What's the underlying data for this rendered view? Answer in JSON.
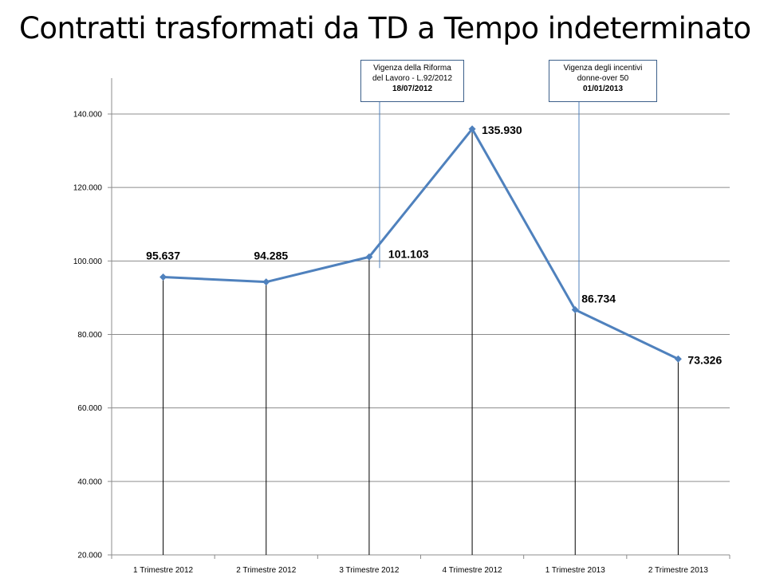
{
  "title": "Contratti trasformati da TD a Tempo indeterminato",
  "annotations": [
    {
      "line1": "Vigenza della Riforma",
      "line2": "del Lavoro - L.92/2012",
      "date": "18/07/2012"
    },
    {
      "line1": "Vigenza degli incentivi",
      "line2": "donne-over 50",
      "date": "01/01/2013"
    }
  ],
  "chart_data": {
    "type": "line",
    "title": "Contratti trasformati da TD a Tempo indeterminato",
    "categories": [
      "1 Trimestre 2012",
      "2 Trimestre 2012",
      "3 Trimestre 2012",
      "4 Trimestre 2012",
      "1 Trimestre 2013",
      "2 Trimestre 2013"
    ],
    "values": [
      95637,
      94285,
      101103,
      135930,
      86734,
      73326
    ],
    "value_labels": [
      "95.637",
      "94.285",
      "101.103",
      "135.930",
      "86.734",
      "73.326"
    ],
    "yticks": [
      "20.000",
      "40.000",
      "60.000",
      "80.000",
      "100.000",
      "120.000",
      "140.000"
    ],
    "ylim": [
      20000,
      140000
    ],
    "grid": true,
    "line_color": "#4f81bd",
    "xlabel": "",
    "ylabel": ""
  }
}
